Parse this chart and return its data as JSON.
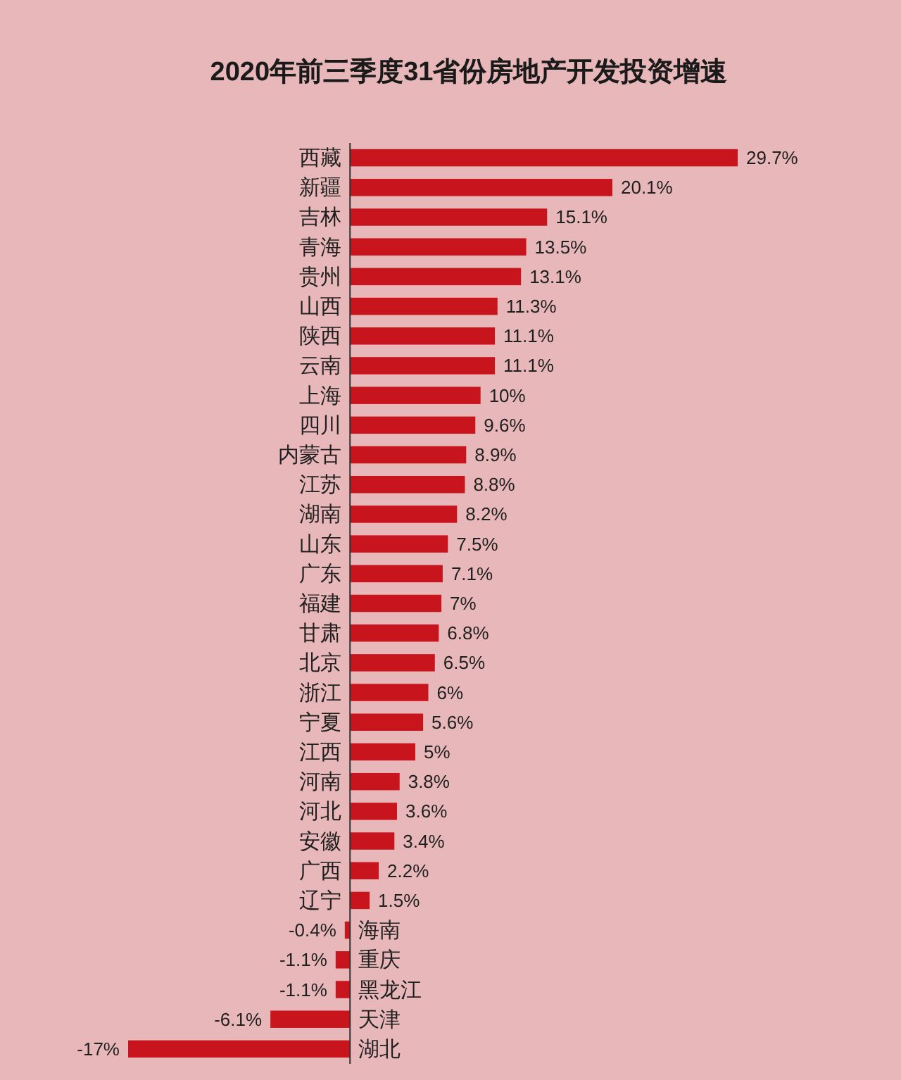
{
  "chart_data": {
    "type": "bar",
    "orientation": "horizontal",
    "title": "2020年前三季度31省份房地产开发投资增速",
    "color": "#c8141c",
    "categories": [
      "西藏",
      "新疆",
      "吉林",
      "青海",
      "贵州",
      "山西",
      "陕西",
      "云南",
      "上海",
      "四川",
      "内蒙古",
      "江苏",
      "湖南",
      "山东",
      "广东",
      "福建",
      "甘肃",
      "北京",
      "浙江",
      "宁夏",
      "江西",
      "河南",
      "河北",
      "安徽",
      "广西",
      "辽宁",
      "海南",
      "重庆",
      "黑龙江",
      "天津",
      "湖北"
    ],
    "values": [
      29.7,
      20.1,
      15.1,
      13.5,
      13.1,
      11.3,
      11.1,
      11.1,
      10,
      9.6,
      8.9,
      8.8,
      8.2,
      7.5,
      7.1,
      7,
      6.8,
      6.5,
      6,
      5.6,
      5,
      3.8,
      3.6,
      3.4,
      2.2,
      1.5,
      -0.4,
      -1.1,
      -1.1,
      -6.1,
      -17
    ],
    "value_labels": [
      "29.7%",
      "20.1%",
      "15.1%",
      "13.5%",
      "13.1%",
      "11.3%",
      "11.1%",
      "11.1%",
      "10%",
      "9.6%",
      "8.9%",
      "8.8%",
      "8.2%",
      "7.5%",
      "7.1%",
      "7%",
      "6.8%",
      "6.5%",
      "6%",
      "5.6%",
      "5%",
      "3.8%",
      "3.6%",
      "3.4%",
      "2.2%",
      "1.5%",
      "-0.4%",
      "-1.1%",
      "-1.1%",
      "-6.1%",
      "-17%"
    ]
  }
}
